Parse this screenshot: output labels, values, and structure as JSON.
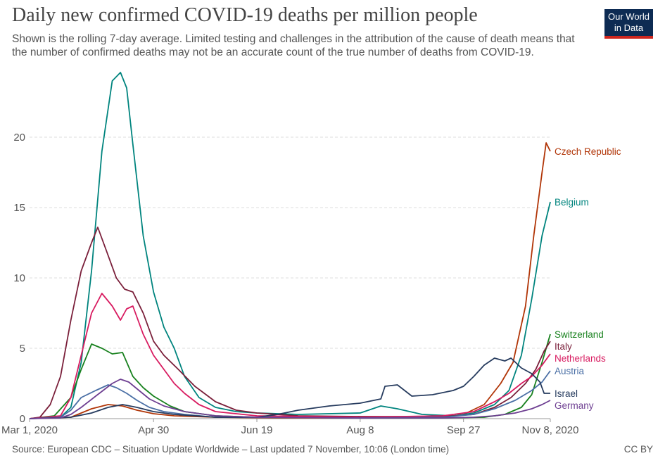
{
  "header": {
    "title": "Daily new confirmed COVID-19 deaths per million people",
    "subtitle": "Shown is the rolling 7-day average. Limited testing and challenges in the attribution of the cause of death means that the number of confirmed deaths may not be an accurate count of the true number of deaths from COVID-19.",
    "logo_line1": "Our World",
    "logo_line2": "in Data"
  },
  "footer": {
    "source": "Source: European CDC – Situation Update Worldwide – Last updated 7 November, 10:06 (London time)",
    "license": "CC BY"
  },
  "colors": {
    "logo_bg": "#0d2b53",
    "logo_accent": "#ce261e",
    "grid": "#dddddd"
  },
  "chart_data": {
    "type": "line",
    "title": "Daily new confirmed COVID-19 deaths per million people",
    "xlabel": "",
    "ylabel": "",
    "x_ticks": [
      "Mar 1, 2020",
      "Apr 30",
      "Jun 19",
      "Aug 8",
      "Sep 27",
      "Nov 8, 2020"
    ],
    "x_tick_days": [
      0,
      60,
      110,
      160,
      210,
      252
    ],
    "y_ticks": [
      0,
      5,
      10,
      15,
      20
    ],
    "ylim": [
      0,
      25
    ],
    "xlim_days": [
      0,
      252
    ],
    "grid": "horizontal dashed",
    "legend": "line-end labels",
    "series": [
      {
        "name": "Czech Republic",
        "color": "#b13507",
        "points": [
          [
            0,
            0
          ],
          [
            20,
            0.1
          ],
          [
            30,
            0.7
          ],
          [
            38,
            1.0
          ],
          [
            45,
            0.9
          ],
          [
            52,
            0.6
          ],
          [
            60,
            0.35
          ],
          [
            70,
            0.2
          ],
          [
            90,
            0.1
          ],
          [
            120,
            0.05
          ],
          [
            160,
            0.05
          ],
          [
            200,
            0.1
          ],
          [
            210,
            0.3
          ],
          [
            220,
            1.0
          ],
          [
            228,
            2.5
          ],
          [
            234,
            4.0
          ],
          [
            240,
            8.0
          ],
          [
            244,
            13.0
          ],
          [
            248,
            17.5
          ],
          [
            250,
            19.6
          ],
          [
            252,
            19.0
          ]
        ]
      },
      {
        "name": "Belgium",
        "color": "#00847e",
        "points": [
          [
            0,
            0
          ],
          [
            15,
            0.1
          ],
          [
            20,
            0.8
          ],
          [
            25,
            4.0
          ],
          [
            30,
            10.5
          ],
          [
            35,
            19.0
          ],
          [
            40,
            24.0
          ],
          [
            44,
            24.6
          ],
          [
            47,
            23.5
          ],
          [
            50,
            19.5
          ],
          [
            55,
            13.0
          ],
          [
            60,
            9.0
          ],
          [
            65,
            6.5
          ],
          [
            70,
            5.0
          ],
          [
            75,
            3.0
          ],
          [
            82,
            1.5
          ],
          [
            90,
            0.8
          ],
          [
            100,
            0.5
          ],
          [
            110,
            0.4
          ],
          [
            130,
            0.3
          ],
          [
            160,
            0.4
          ],
          [
            170,
            0.9
          ],
          [
            178,
            0.7
          ],
          [
            190,
            0.3
          ],
          [
            205,
            0.2
          ],
          [
            215,
            0.4
          ],
          [
            225,
            1.0
          ],
          [
            232,
            2.0
          ],
          [
            238,
            4.5
          ],
          [
            243,
            8.5
          ],
          [
            248,
            13.0
          ],
          [
            252,
            15.4
          ]
        ]
      },
      {
        "name": "Switzerland",
        "color": "#18811e",
        "points": [
          [
            0,
            0
          ],
          [
            12,
            0.2
          ],
          [
            20,
            1.5
          ],
          [
            25,
            3.5
          ],
          [
            30,
            5.3
          ],
          [
            35,
            5.0
          ],
          [
            40,
            4.6
          ],
          [
            45,
            4.7
          ],
          [
            50,
            3.0
          ],
          [
            55,
            2.2
          ],
          [
            60,
            1.6
          ],
          [
            68,
            0.9
          ],
          [
            75,
            0.5
          ],
          [
            90,
            0.2
          ],
          [
            110,
            0.1
          ],
          [
            160,
            0.05
          ],
          [
            200,
            0.05
          ],
          [
            220,
            0.1
          ],
          [
            230,
            0.3
          ],
          [
            238,
            0.8
          ],
          [
            243,
            1.7
          ],
          [
            248,
            4.0
          ],
          [
            252,
            6.0
          ]
        ]
      },
      {
        "name": "Italy",
        "color": "#7a1f3a",
        "points": [
          [
            0,
            0
          ],
          [
            5,
            0.1
          ],
          [
            10,
            1.0
          ],
          [
            15,
            3.0
          ],
          [
            20,
            7.0
          ],
          [
            25,
            10.5
          ],
          [
            30,
            12.5
          ],
          [
            33,
            13.6
          ],
          [
            37,
            12.0
          ],
          [
            42,
            10.0
          ],
          [
            46,
            9.2
          ],
          [
            50,
            9.0
          ],
          [
            55,
            7.5
          ],
          [
            60,
            5.5
          ],
          [
            65,
            4.5
          ],
          [
            72,
            3.5
          ],
          [
            80,
            2.3
          ],
          [
            90,
            1.2
          ],
          [
            100,
            0.6
          ],
          [
            110,
            0.4
          ],
          [
            130,
            0.2
          ],
          [
            160,
            0.15
          ],
          [
            200,
            0.15
          ],
          [
            215,
            0.3
          ],
          [
            225,
            0.8
          ],
          [
            233,
            1.5
          ],
          [
            240,
            2.5
          ],
          [
            245,
            3.5
          ],
          [
            249,
            4.8
          ],
          [
            252,
            5.5
          ]
        ]
      },
      {
        "name": "Netherlands",
        "color": "#d81b60",
        "points": [
          [
            0,
            0
          ],
          [
            15,
            0.2
          ],
          [
            20,
            1.5
          ],
          [
            25,
            4.5
          ],
          [
            30,
            7.5
          ],
          [
            35,
            8.9
          ],
          [
            40,
            8.0
          ],
          [
            44,
            7.0
          ],
          [
            47,
            7.8
          ],
          [
            50,
            8.0
          ],
          [
            55,
            6.0
          ],
          [
            60,
            4.5
          ],
          [
            65,
            3.5
          ],
          [
            70,
            2.5
          ],
          [
            75,
            1.8
          ],
          [
            82,
            1.0
          ],
          [
            90,
            0.5
          ],
          [
            110,
            0.2
          ],
          [
            160,
            0.1
          ],
          [
            200,
            0.2
          ],
          [
            215,
            0.5
          ],
          [
            225,
            1.2
          ],
          [
            232,
            1.8
          ],
          [
            238,
            2.5
          ],
          [
            243,
            3.0
          ],
          [
            248,
            3.8
          ],
          [
            252,
            4.6
          ]
        ]
      },
      {
        "name": "Austria",
        "color": "#4a6fa5",
        "points": [
          [
            0,
            0
          ],
          [
            15,
            0.1
          ],
          [
            20,
            0.6
          ],
          [
            25,
            1.5
          ],
          [
            32,
            2.0
          ],
          [
            38,
            2.4
          ],
          [
            42,
            2.2
          ],
          [
            47,
            1.8
          ],
          [
            52,
            1.3
          ],
          [
            58,
            0.8
          ],
          [
            65,
            0.5
          ],
          [
            75,
            0.3
          ],
          [
            90,
            0.1
          ],
          [
            160,
            0.05
          ],
          [
            200,
            0.1
          ],
          [
            215,
            0.3
          ],
          [
            225,
            0.7
          ],
          [
            235,
            1.3
          ],
          [
            243,
            2.0
          ],
          [
            248,
            2.6
          ],
          [
            252,
            3.4
          ]
        ]
      },
      {
        "name": "Israel",
        "color": "#263b5e",
        "points": [
          [
            0,
            0
          ],
          [
            20,
            0.1
          ],
          [
            30,
            0.4
          ],
          [
            38,
            0.8
          ],
          [
            45,
            1.0
          ],
          [
            52,
            0.8
          ],
          [
            60,
            0.5
          ],
          [
            70,
            0.3
          ],
          [
            90,
            0.1
          ],
          [
            110,
            0.1
          ],
          [
            120,
            0.3
          ],
          [
            130,
            0.6
          ],
          [
            145,
            0.9
          ],
          [
            160,
            1.1
          ],
          [
            170,
            1.4
          ],
          [
            172,
            2.3
          ],
          [
            178,
            2.4
          ],
          [
            185,
            1.6
          ],
          [
            195,
            1.7
          ],
          [
            205,
            2.0
          ],
          [
            210,
            2.3
          ],
          [
            215,
            3.0
          ],
          [
            220,
            3.8
          ],
          [
            225,
            4.3
          ],
          [
            230,
            4.1
          ],
          [
            233,
            4.3
          ],
          [
            238,
            3.6
          ],
          [
            243,
            3.2
          ],
          [
            247,
            2.6
          ],
          [
            249,
            1.8
          ],
          [
            252,
            1.8
          ]
        ]
      },
      {
        "name": "Germany",
        "color": "#6d3e91",
        "points": [
          [
            0,
            0
          ],
          [
            15,
            0.05
          ],
          [
            20,
            0.3
          ],
          [
            25,
            0.8
          ],
          [
            32,
            1.6
          ],
          [
            40,
            2.5
          ],
          [
            44,
            2.8
          ],
          [
            48,
            2.6
          ],
          [
            53,
            2.0
          ],
          [
            58,
            1.4
          ],
          [
            65,
            0.9
          ],
          [
            75,
            0.5
          ],
          [
            90,
            0.2
          ],
          [
            110,
            0.1
          ],
          [
            160,
            0.05
          ],
          [
            200,
            0.05
          ],
          [
            215,
            0.1
          ],
          [
            225,
            0.2
          ],
          [
            235,
            0.4
          ],
          [
            243,
            0.7
          ],
          [
            248,
            1.0
          ],
          [
            252,
            1.3
          ]
        ]
      }
    ]
  }
}
